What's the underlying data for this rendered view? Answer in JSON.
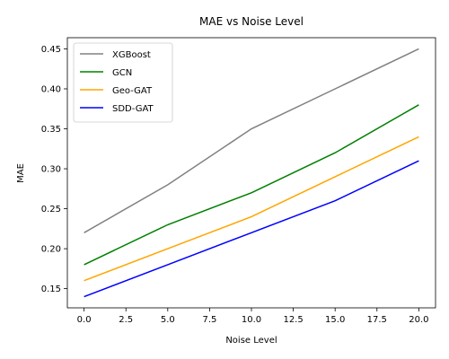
{
  "chart_data": {
    "type": "line",
    "title": "MAE vs Noise Level",
    "xlabel": "Noise Level",
    "ylabel": "MAE",
    "x": [
      0,
      5,
      10,
      15,
      20
    ],
    "xlim": [
      -1,
      21
    ],
    "ylim": [
      0.126,
      0.464
    ],
    "xticks": [
      0.0,
      2.5,
      5.0,
      7.5,
      10.0,
      12.5,
      15.0,
      17.5,
      20.0
    ],
    "xtick_labels": [
      "0.0",
      "2.5",
      "5.0",
      "7.5",
      "10.0",
      "12.5",
      "15.0",
      "17.5",
      "20.0"
    ],
    "yticks": [
      0.15,
      0.2,
      0.25,
      0.3,
      0.35,
      0.4,
      0.45
    ],
    "ytick_labels": [
      "0.15",
      "0.20",
      "0.25",
      "0.30",
      "0.35",
      "0.40",
      "0.45"
    ],
    "grid": false,
    "legend_position": "top-left",
    "series": [
      {
        "name": "XGBoost",
        "color": "#808080",
        "values": [
          0.22,
          0.28,
          0.35,
          0.4,
          0.45
        ]
      },
      {
        "name": "GCN",
        "color": "#008000",
        "values": [
          0.18,
          0.23,
          0.27,
          0.32,
          0.38
        ]
      },
      {
        "name": "Geo-GAT",
        "color": "#ffa500",
        "values": [
          0.16,
          0.2,
          0.24,
          0.29,
          0.34
        ]
      },
      {
        "name": "SDD-GAT",
        "color": "#0000ff",
        "values": [
          0.14,
          0.18,
          0.22,
          0.26,
          0.31
        ]
      }
    ]
  }
}
